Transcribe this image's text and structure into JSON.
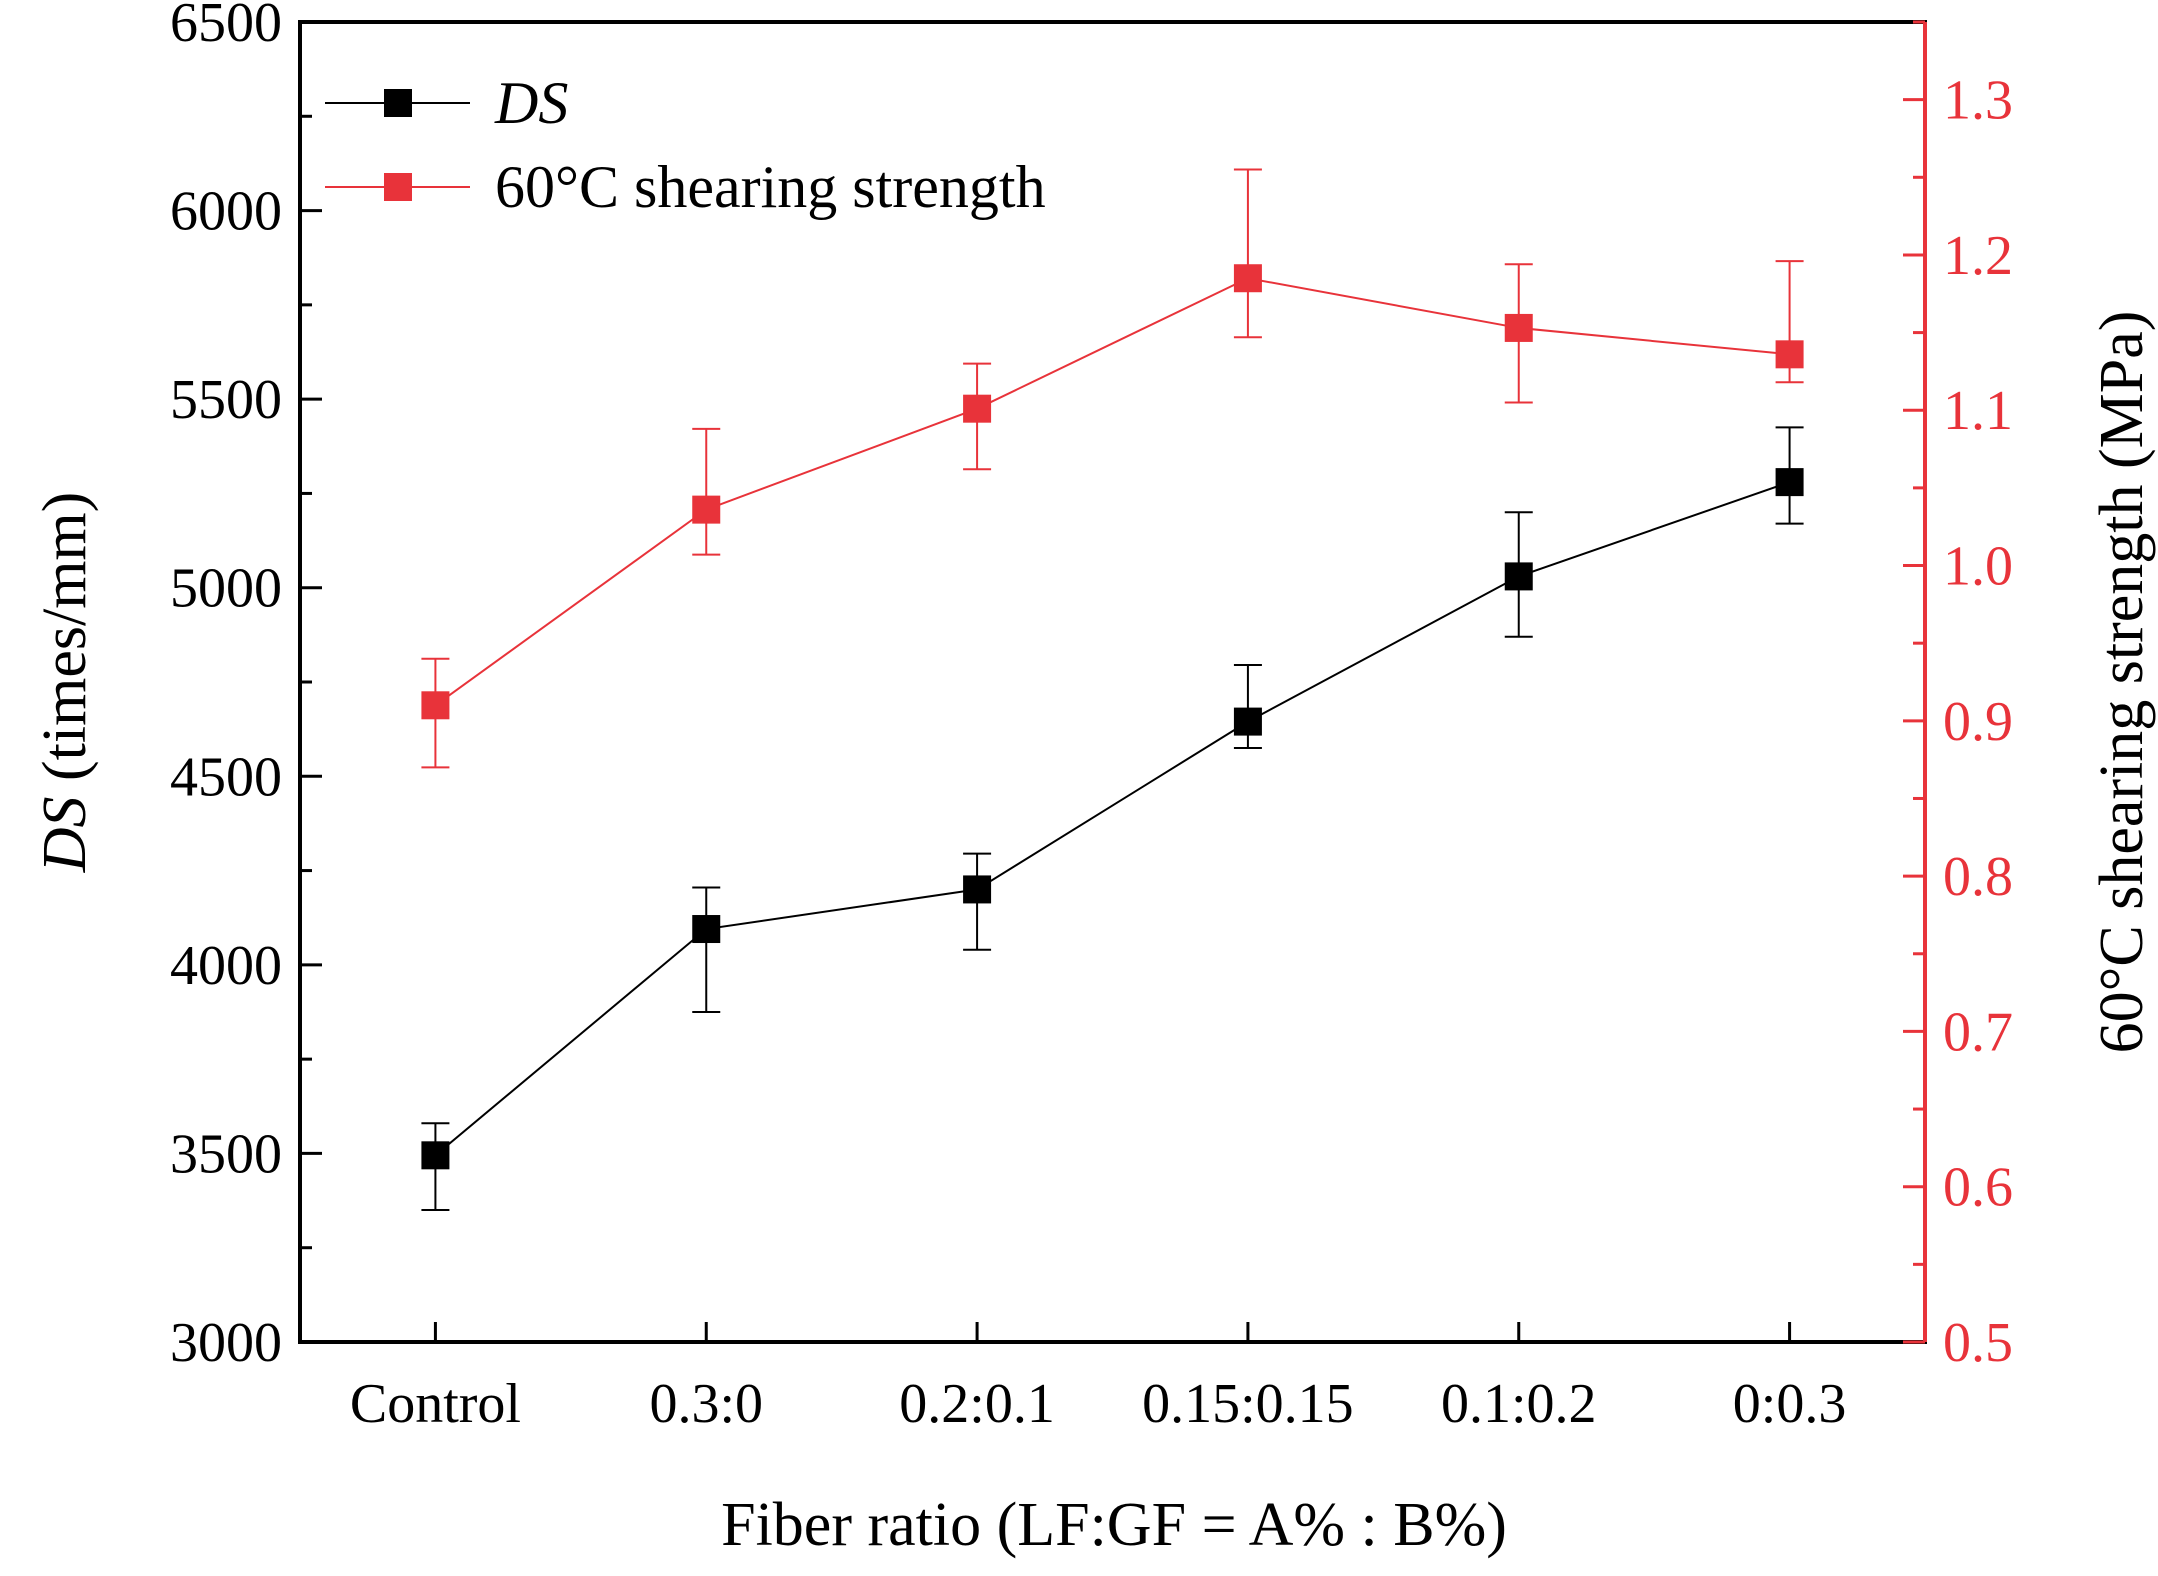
{
  "chart_data": {
    "type": "line",
    "categories": [
      "Control",
      "0.3:0",
      "0.2:0.1",
      "0.15:0.15",
      "0.1:0.2",
      "0:0.3"
    ],
    "xlabel": "Fiber ratio (LF:GF = A% : B%)",
    "ylabel": {
      "prefix": "DS",
      "suffix": " (times/mm)"
    },
    "y2label": "60°C shearing strength (MPa)",
    "ylim": [
      3000,
      6500
    ],
    "y_ticks": [
      "3000",
      "3500",
      "4000",
      "4500",
      "5000",
      "5500",
      "6000",
      "6500"
    ],
    "y2lim": [
      0.5,
      1.35
    ],
    "y2_ticks": [
      "0.5",
      "0.6",
      "0.7",
      "0.8",
      "0.9",
      "1.0",
      "1.1",
      "1.2",
      "1.3"
    ],
    "legend_position": "top-left",
    "series": [
      {
        "name": "DS",
        "axis": "left",
        "color": "#000000",
        "values": [
          3495,
          4095,
          4200,
          4645,
          5030,
          5280
        ],
        "err_low": [
          3350,
          3875,
          4040,
          4575,
          4870,
          5170
        ],
        "err_high": [
          3580,
          4205,
          4295,
          4795,
          5200,
          5425
        ]
      },
      {
        "name": "60°C shearing strength",
        "axis": "right",
        "color": "#e8333a",
        "values": [
          0.91,
          1.036,
          1.101,
          1.185,
          1.153,
          1.136
        ],
        "err_low": [
          0.87,
          1.007,
          1.062,
          1.147,
          1.105,
          1.118
        ],
        "err_high": [
          0.94,
          1.088,
          1.13,
          1.255,
          1.194,
          1.196
        ]
      }
    ]
  }
}
